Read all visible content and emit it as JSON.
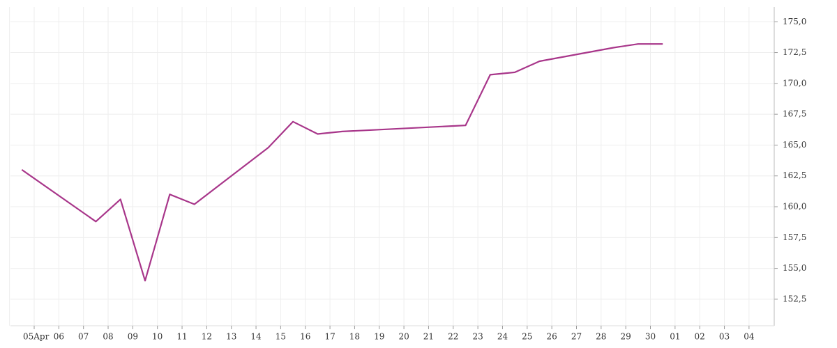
{
  "chart_data": {
    "type": "line",
    "categories": [
      "05Apr",
      "06",
      "07",
      "08",
      "09",
      "10",
      "11",
      "12",
      "13",
      "14",
      "15",
      "16",
      "17",
      "18",
      "19",
      "20",
      "21",
      "22",
      "23",
      "24",
      "25",
      "26",
      "27",
      "28",
      "29",
      "30",
      "01",
      "02",
      "03",
      "04"
    ],
    "series": [
      {
        "color": "#a8368a",
        "x": [
          null,
          "07",
          "08",
          "09",
          "10",
          "11",
          "14",
          "15",
          "16",
          "17",
          "22",
          "23",
          "24",
          "25",
          "28",
          "29",
          "30"
        ],
        "values": [
          163.0,
          158.8,
          160.6,
          154.0,
          161.0,
          160.2,
          164.8,
          166.9,
          165.9,
          166.1,
          166.6,
          170.7,
          170.9,
          171.8,
          172.9,
          173.2,
          173.2
        ]
      }
    ],
    "ylim": [
      150.35,
      176.2
    ],
    "yticks": [
      {
        "value": 152.5,
        "label": "152,5"
      },
      {
        "value": 155.0,
        "label": "155,0"
      },
      {
        "value": 157.5,
        "label": "157,5"
      },
      {
        "value": 160.0,
        "label": "160,0"
      },
      {
        "value": 162.5,
        "label": "162,5"
      },
      {
        "value": 165.0,
        "label": "165,0"
      },
      {
        "value": 167.5,
        "label": "167,5"
      },
      {
        "value": 170.0,
        "label": "170,0"
      },
      {
        "value": 172.5,
        "label": "172,5"
      },
      {
        "value": 175.0,
        "label": "175,0"
      }
    ],
    "grid": true
  }
}
